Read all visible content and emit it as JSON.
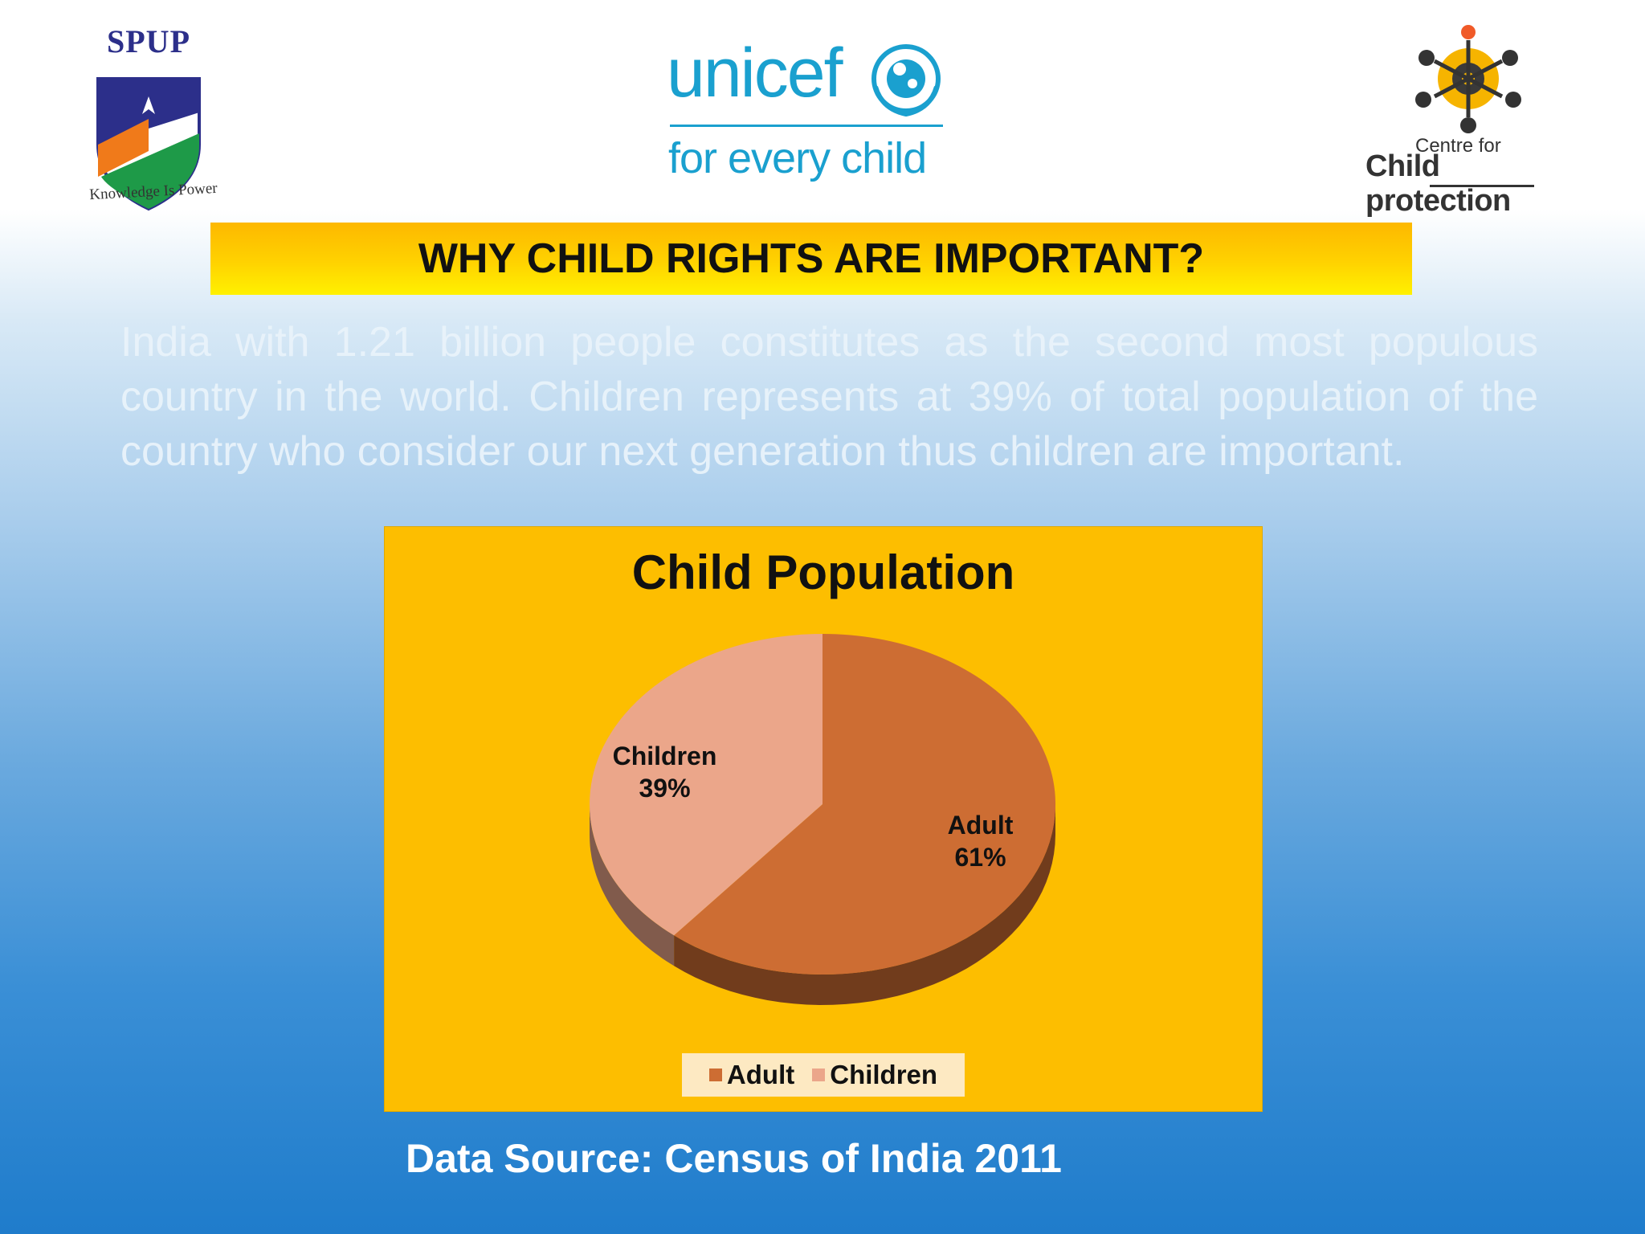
{
  "logos": {
    "spup": {
      "title": "SPUP",
      "tagline": "Knowledge Is Power"
    },
    "unicef": {
      "wordmark": "unicef",
      "tagline": "for every child"
    },
    "ccp": {
      "line1": "Centre for",
      "line2": "Child protection"
    }
  },
  "title_bar": {
    "text": "WHY CHILD RIGHTS ARE IMPORTANT?"
  },
  "body_text": "India with 1.21 billion people constitutes as the second most populous country in the world. Children represents at 39% of total population of the country who consider our next generation thus children are important.",
  "chart_data": {
    "type": "pie",
    "title": "Child Population",
    "categories": [
      "Adult",
      "Children"
    ],
    "values": [
      61,
      39
    ],
    "unit": "%",
    "colors": [
      "#cd6d33",
      "#eba68a"
    ],
    "data_labels": [
      {
        "category": "Adult",
        "percent": "61%"
      },
      {
        "category": "Children",
        "percent": "39%"
      }
    ],
    "legend": {
      "position": "bottom",
      "entries": [
        "Adult",
        "Children"
      ]
    }
  },
  "source": "Data Source: Census of India 2011",
  "colors": {
    "title_bar": "#ffd200",
    "chart_background": "#fdbe00",
    "background_bottom": "#1f7ccb"
  }
}
